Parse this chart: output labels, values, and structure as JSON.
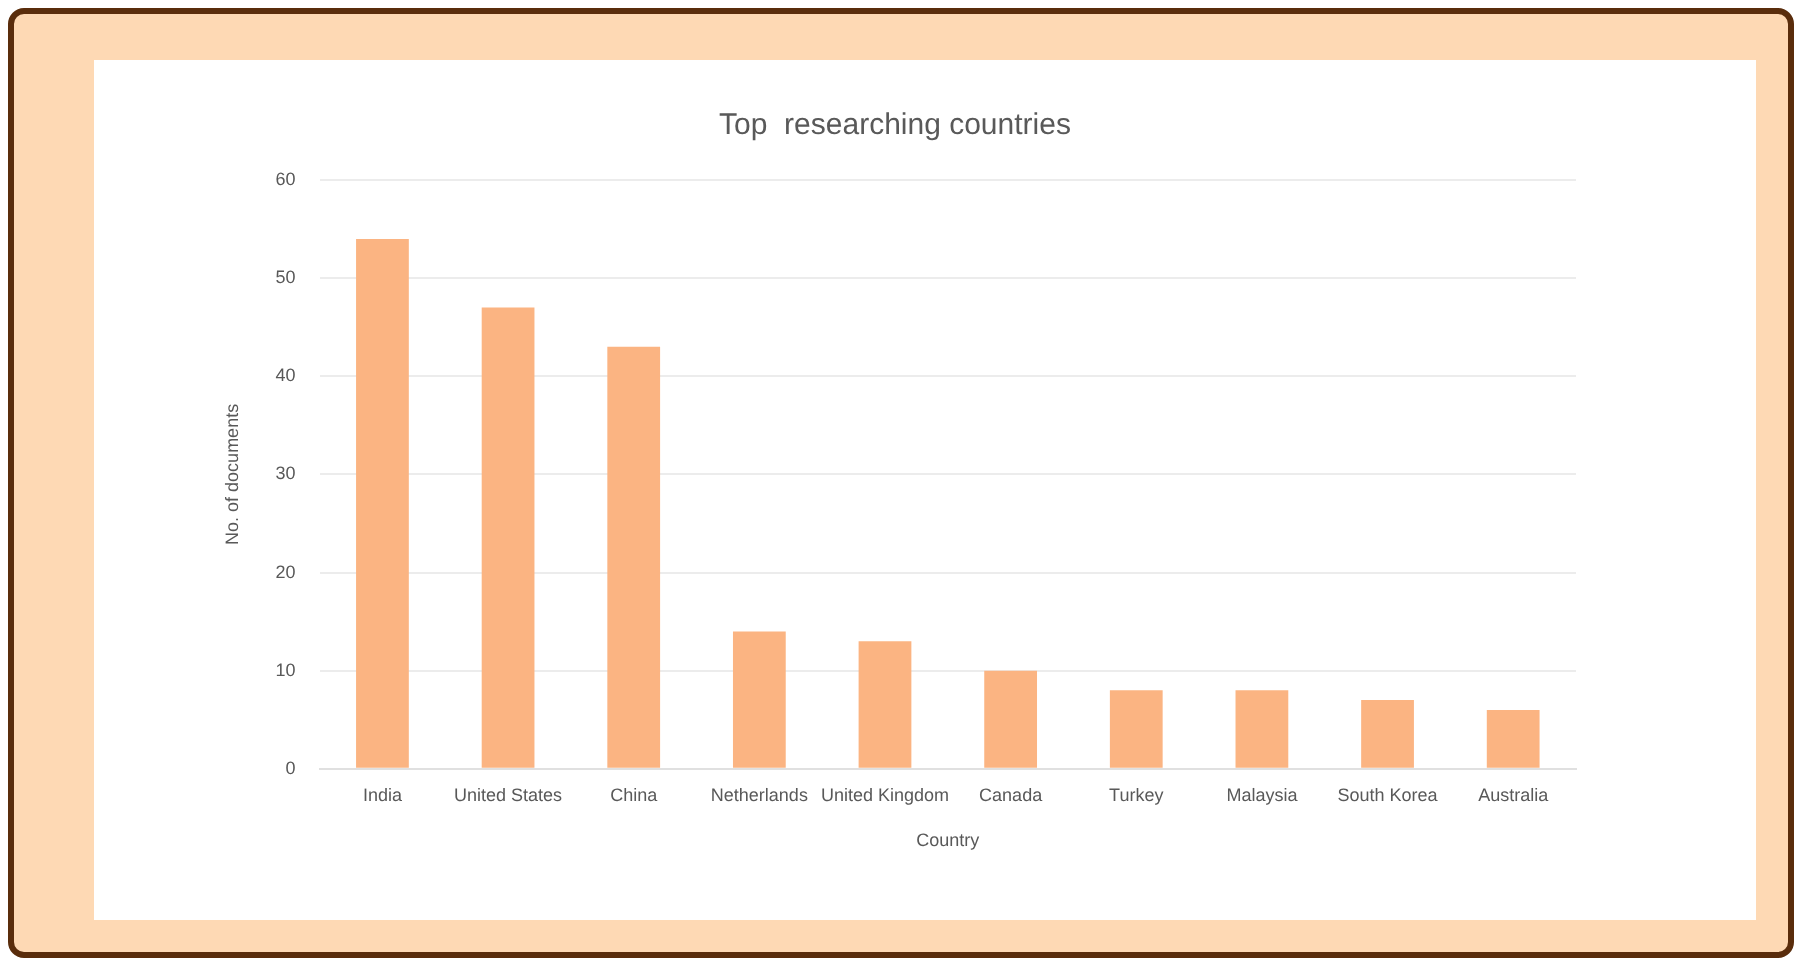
{
  "chart_data": {
    "type": "bar",
    "title": "Top  researching countries",
    "xlabel": "Country",
    "ylabel": "No. of documents",
    "categories": [
      "India",
      "United States",
      "China",
      "Netherlands",
      "United Kingdom",
      "Canada",
      "Turkey",
      "Malaysia",
      "South Korea",
      "Australia"
    ],
    "values": [
      54,
      47,
      43,
      14,
      13,
      10,
      8,
      8,
      7,
      6
    ],
    "color": "#fbb482",
    "ylim": [
      0,
      60
    ],
    "yticks": [
      0,
      10,
      20,
      30,
      40,
      50,
      60
    ],
    "grid": "y"
  }
}
